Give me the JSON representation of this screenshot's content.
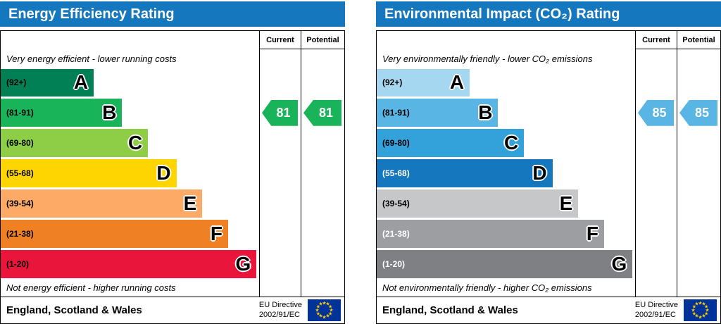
{
  "chart_data": [
    {
      "type": "bar",
      "title": "Energy Efficiency Rating",
      "columns": [
        "Current",
        "Potential"
      ],
      "header_color": "#1578be",
      "top_note": "Very energy efficient - lower running costs",
      "bottom_note": "Not energy efficient - higher running costs",
      "bands": [
        {
          "range": "(92+)",
          "letter": "A",
          "color": "#008054",
          "width_pct": 36,
          "label_color": "#000000"
        },
        {
          "range": "(81-91)",
          "letter": "B",
          "color": "#19b459",
          "width_pct": 47,
          "label_color": "#000000"
        },
        {
          "range": "(69-80)",
          "letter": "C",
          "color": "#8dce46",
          "width_pct": 57,
          "label_color": "#000000"
        },
        {
          "range": "(55-68)",
          "letter": "D",
          "color": "#ffd500",
          "width_pct": 68,
          "label_color": "#000000"
        },
        {
          "range": "(39-54)",
          "letter": "E",
          "color": "#fcaa65",
          "width_pct": 78,
          "label_color": "#000000"
        },
        {
          "range": "(21-38)",
          "letter": "F",
          "color": "#ef8023",
          "width_pct": 88,
          "label_color": "#000000"
        },
        {
          "range": "(1-20)",
          "letter": "G",
          "color": "#e9153b",
          "width_pct": 99,
          "label_color": "#000000"
        }
      ],
      "current": {
        "value": "81",
        "band_index": 1,
        "color": "#19b459",
        "text_color": "#ffffff"
      },
      "potential": {
        "value": "81",
        "band_index": 1,
        "color": "#19b459",
        "text_color": "#ffffff"
      },
      "footer_region": "England, Scotland & Wales",
      "directive_lines": [
        "EU Directive",
        "2002/91/EC"
      ]
    },
    {
      "type": "bar",
      "title": "Environmental Impact (CO₂) Rating",
      "columns": [
        "Current",
        "Potential"
      ],
      "header_color": "#1578be",
      "top_note": "Very environmentally friendly - lower CO₂ emissions",
      "bottom_note": "Not environmentally friendly - higher CO₂ emissions",
      "bands": [
        {
          "range": "(92+)",
          "letter": "A",
          "color": "#a5d8f0",
          "width_pct": 36,
          "label_color": "#000000"
        },
        {
          "range": "(81-91)",
          "letter": "B",
          "color": "#58b5e4",
          "width_pct": 47,
          "label_color": "#000000"
        },
        {
          "range": "(69-80)",
          "letter": "C",
          "color": "#33a1da",
          "width_pct": 57,
          "label_color": "#000000"
        },
        {
          "range": "(55-68)",
          "letter": "D",
          "color": "#1578be",
          "width_pct": 68,
          "label_color": "#ffffff"
        },
        {
          "range": "(39-54)",
          "letter": "E",
          "color": "#c6c7c9",
          "width_pct": 78,
          "label_color": "#000000"
        },
        {
          "range": "(21-38)",
          "letter": "F",
          "color": "#9c9ea1",
          "width_pct": 88,
          "label_color": "#ffffff"
        },
        {
          "range": "(1-20)",
          "letter": "G",
          "color": "#7e8083",
          "width_pct": 99,
          "label_color": "#ffffff"
        }
      ],
      "current": {
        "value": "85",
        "band_index": 1,
        "color": "#58b5e4",
        "text_color": "#ffffff"
      },
      "potential": {
        "value": "85",
        "band_index": 1,
        "color": "#58b5e4",
        "text_color": "#ffffff"
      },
      "footer_region": "England, Scotland & Wales",
      "directive_lines": [
        "EU Directive",
        "2002/91/EC"
      ]
    }
  ],
  "eu_flag": {
    "background": "#003399",
    "star_color": "#ffcc00",
    "star_count": 12
  }
}
